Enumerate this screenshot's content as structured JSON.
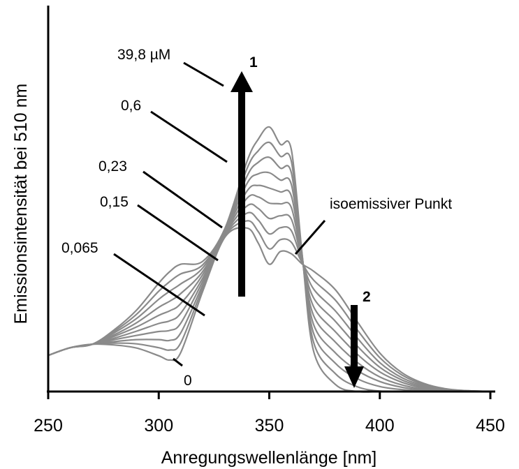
{
  "chart_data": {
    "type": "line",
    "title": "",
    "xlabel": "Anregungswellenlänge [nm]",
    "ylabel": "Emissionsintensität bei 510 nm",
    "xlim": [
      250,
      450
    ],
    "ylim": [
      0,
      1
    ],
    "x_ticks": [
      "250",
      "300",
      "350",
      "400",
      "450"
    ],
    "y_ticks": [],
    "grid": false,
    "legend": "none",
    "line_color": "#8a8a8a",
    "x": [
      250,
      260,
      270,
      280,
      290,
      300,
      305,
      310,
      320,
      330,
      340,
      345,
      350,
      355,
      360,
      365,
      370,
      380,
      390,
      400,
      410,
      420,
      430,
      440,
      450
    ],
    "series": [
      {
        "name": "0",
        "values": [
          0.094,
          0.114,
          0.123,
          0.121,
          0.113,
          0.093,
          0.082,
          0.102,
          0.262,
          0.402,
          0.425,
          0.386,
          0.331,
          0.364,
          0.358,
          0.331,
          0.313,
          0.264,
          0.18,
          0.1,
          0.049,
          0.021,
          0.007,
          0.002,
          0.0
        ]
      },
      {
        "values": [
          0.094,
          0.114,
          0.123,
          0.126,
          0.124,
          0.114,
          0.108,
          0.127,
          0.271,
          0.405,
          0.444,
          0.416,
          0.371,
          0.395,
          0.388,
          0.333,
          0.29,
          0.237,
          0.159,
          0.088,
          0.043,
          0.018,
          0.006,
          0.002,
          0.0
        ]
      },
      {
        "values": [
          0.094,
          0.114,
          0.123,
          0.13,
          0.135,
          0.135,
          0.133,
          0.153,
          0.279,
          0.407,
          0.464,
          0.446,
          0.41,
          0.426,
          0.418,
          0.335,
          0.267,
          0.209,
          0.138,
          0.075,
          0.036,
          0.015,
          0.005,
          0.001,
          0.0
        ]
      },
      {
        "name": "0,065",
        "values": [
          0.094,
          0.114,
          0.123,
          0.135,
          0.146,
          0.156,
          0.159,
          0.178,
          0.288,
          0.41,
          0.483,
          0.476,
          0.45,
          0.457,
          0.448,
          0.337,
          0.244,
          0.182,
          0.117,
          0.063,
          0.03,
          0.012,
          0.004,
          0.001,
          0.0
        ]
      },
      {
        "values": [
          0.094,
          0.114,
          0.123,
          0.139,
          0.157,
          0.177,
          0.184,
          0.204,
          0.296,
          0.412,
          0.503,
          0.506,
          0.49,
          0.488,
          0.478,
          0.339,
          0.221,
          0.155,
          0.096,
          0.051,
          0.024,
          0.009,
          0.003,
          0.001,
          0.0
        ]
      },
      {
        "name": "0,15",
        "values": [
          0.094,
          0.114,
          0.123,
          0.144,
          0.168,
          0.198,
          0.21,
          0.229,
          0.305,
          0.415,
          0.522,
          0.536,
          0.529,
          0.519,
          0.508,
          0.341,
          0.198,
          0.128,
          0.075,
          0.038,
          0.017,
          0.006,
          0.002,
          0.001,
          0.0
        ]
      },
      {
        "name": "0,23",
        "values": [
          0.094,
          0.114,
          0.123,
          0.148,
          0.179,
          0.219,
          0.235,
          0.255,
          0.313,
          0.417,
          0.542,
          0.566,
          0.569,
          0.55,
          0.538,
          0.343,
          0.175,
          0.1,
          0.054,
          0.026,
          0.011,
          0.004,
          0.001,
          0.0,
          0.0
        ]
      },
      {
        "values": [
          0.094,
          0.114,
          0.123,
          0.153,
          0.19,
          0.24,
          0.261,
          0.28,
          0.322,
          0.42,
          0.561,
          0.596,
          0.609,
          0.581,
          0.568,
          0.345,
          0.152,
          0.073,
          0.033,
          0.013,
          0.005,
          0.002,
          0.0,
          0.0,
          0.0
        ]
      },
      {
        "name": "0,6",
        "values": [
          0.094,
          0.114,
          0.123,
          0.157,
          0.201,
          0.261,
          0.286,
          0.306,
          0.33,
          0.422,
          0.581,
          0.626,
          0.648,
          0.612,
          0.598,
          0.347,
          0.129,
          0.046,
          0.012,
          0.001,
          0.0,
          0.0,
          0.0,
          0.0,
          0.0
        ]
      },
      {
        "name": "39,8 µM",
        "values": [
          0.094,
          0.114,
          0.123,
          0.161,
          0.212,
          0.282,
          0.312,
          0.331,
          0.339,
          0.425,
          0.6,
          0.656,
          0.688,
          0.643,
          0.628,
          0.349,
          0.106,
          0.018,
          0.0,
          0.0,
          0.0,
          0.0,
          0.0,
          0.0,
          0.0
        ]
      }
    ],
    "annotations": [
      {
        "text": "1",
        "meaning": "arrow pointing up at ~339 nm"
      },
      {
        "text": "2",
        "meaning": "arrow pointing down at ~388 nm"
      },
      {
        "text": "isoemissiver Punkt",
        "x": 361
      }
    ]
  }
}
